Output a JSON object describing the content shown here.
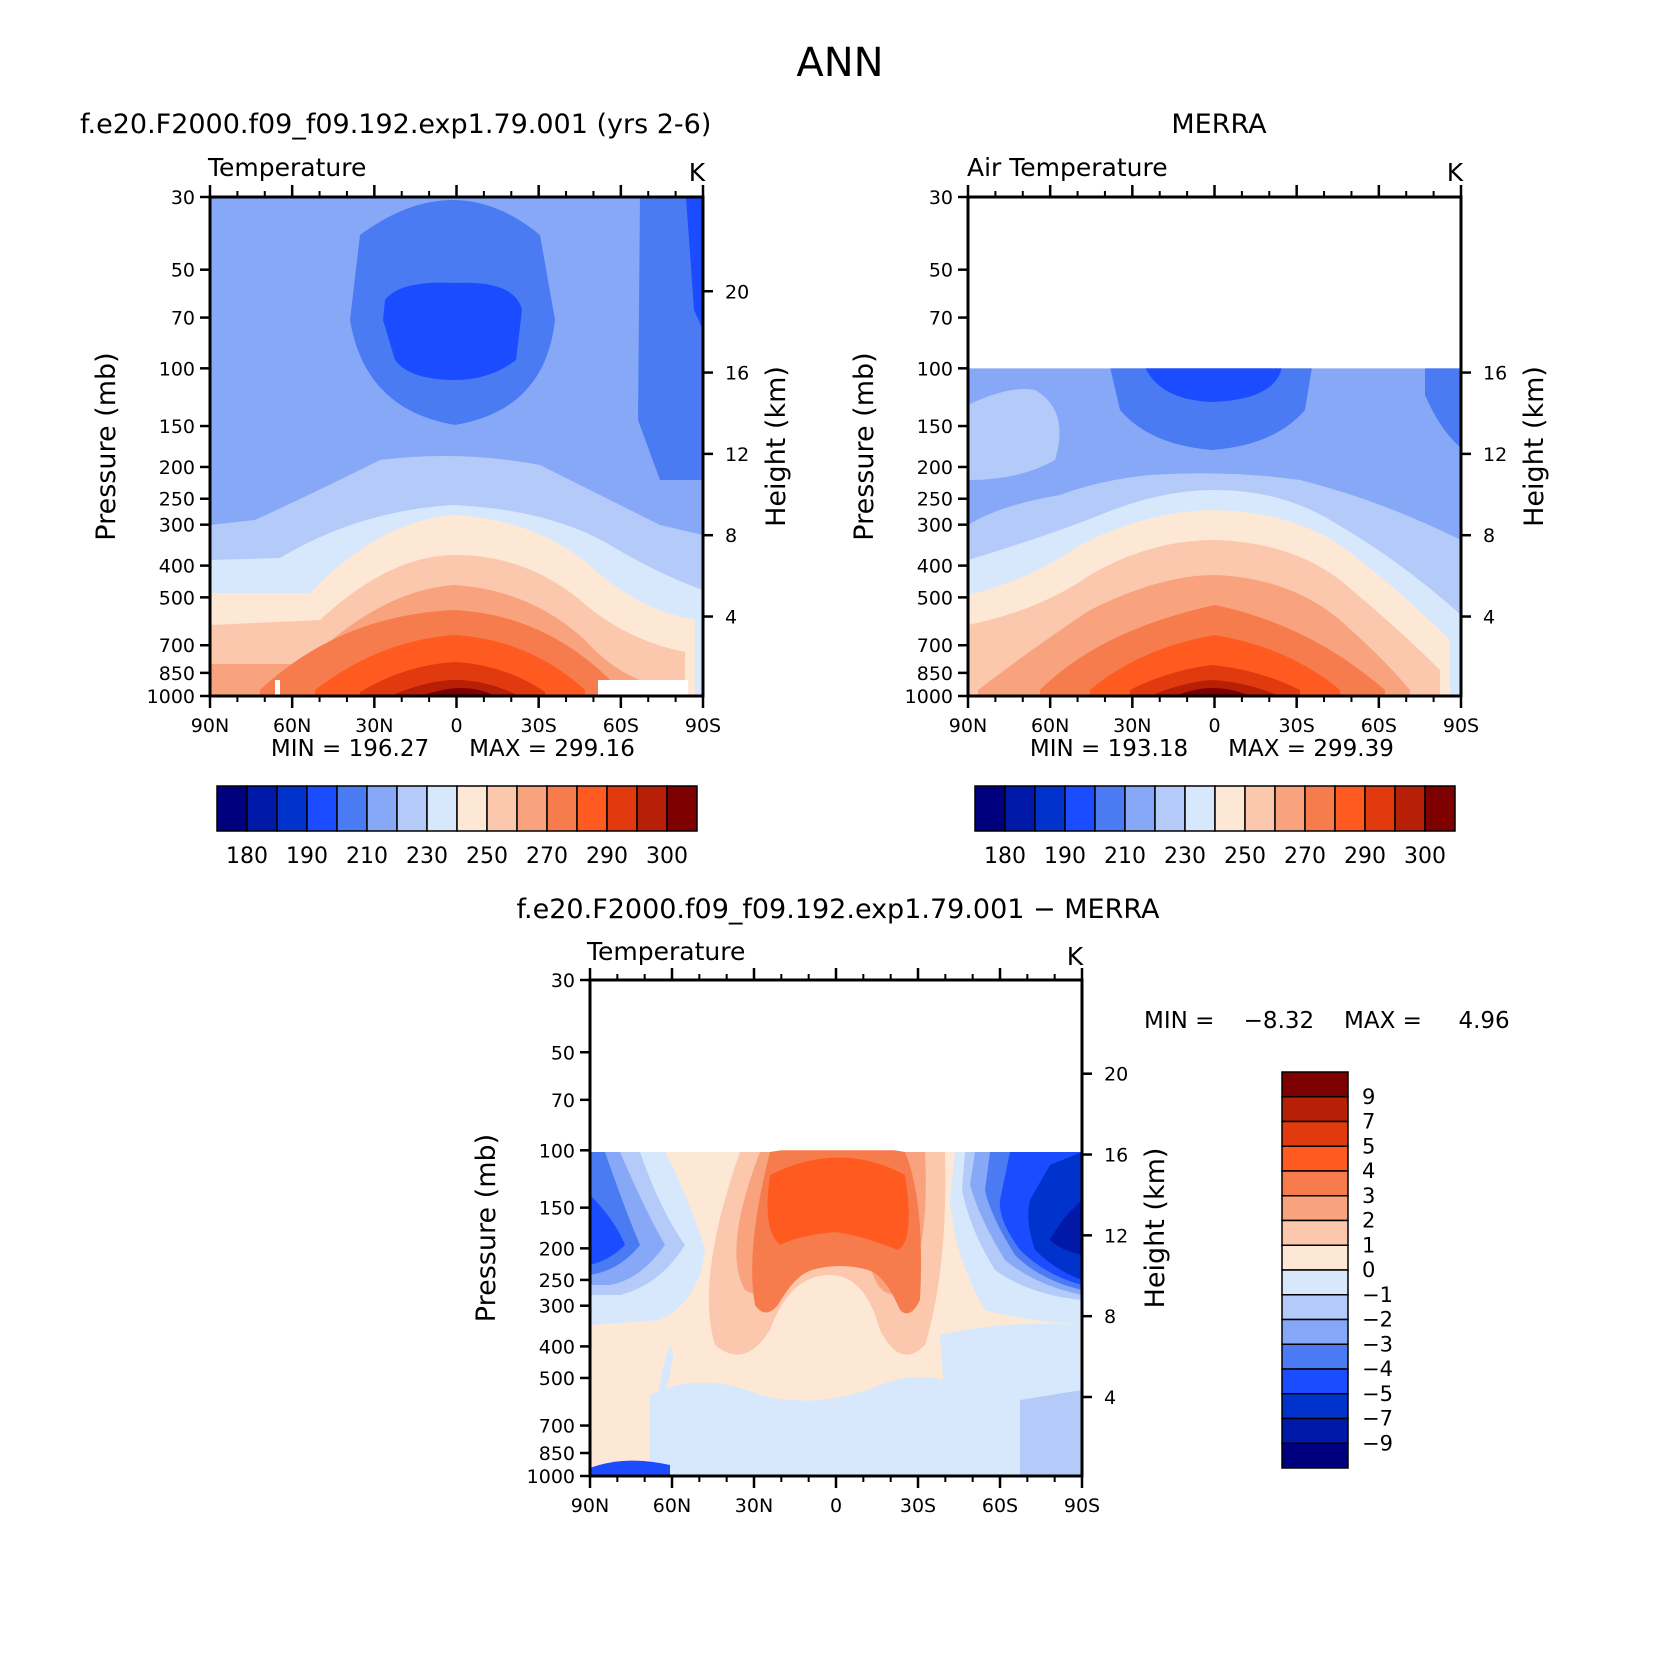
{
  "figure_title": "ANN",
  "colors": {
    "abs_levels": [
      "#00007f",
      "#0019a8",
      "#0033cc",
      "#1b4cff",
      "#4a7bf2",
      "#86a8f7",
      "#b4cbfa",
      "#d7e8fc",
      "#fde8d6",
      "#fbc8ad",
      "#f8a37e",
      "#f67c4d",
      "#ff5a1f",
      "#e03a0e",
      "#b81f07",
      "#7f0000"
    ],
    "diff_levels": [
      "#00007f",
      "#0019a8",
      "#0033cc",
      "#1b4cff",
      "#4a7bf2",
      "#86a8f7",
      "#b4cbfa",
      "#d7e8fc",
      "#fde8d6",
      "#fbc8ad",
      "#f8a37e",
      "#f67c4d",
      "#ff5a1f",
      "#e03a0e",
      "#b81f07",
      "#7f0000"
    ]
  },
  "chart_data": [
    {
      "type": "heatmap",
      "panel_title": "f.e20.F2000.f09_f09.192.exp1.79.001 (yrs 2-6)",
      "variable": "Temperature",
      "units": "K",
      "xlabel": "",
      "ylabel": "Pressure (mb)",
      "ylabel_right": "Height (km)",
      "x_ticks": [
        "90N",
        "60N",
        "30N",
        "0",
        "30S",
        "60S",
        "90S"
      ],
      "x_range": [
        90,
        -90
      ],
      "y_ticks": [
        30,
        50,
        70,
        100,
        150,
        200,
        250,
        300,
        400,
        500,
        700,
        850,
        1000
      ],
      "y_range": [
        30,
        1000
      ],
      "y_scale": "log",
      "height_ticks": [
        20,
        16,
        12,
        8,
        4
      ],
      "data_top_mb": 30,
      "min_label": "MIN = 196.27",
      "max_label": "MAX = 299.16",
      "min": 196.27,
      "max": 299.16,
      "colorbar_labels": [
        "180",
        "190",
        "210",
        "230",
        "250",
        "270",
        "290",
        "300"
      ]
    },
    {
      "type": "heatmap",
      "panel_title": "MERRA",
      "variable": "Air Temperature",
      "units": "K",
      "xlabel": "",
      "ylabel": "Pressure (mb)",
      "ylabel_right": "Height (km)",
      "x_ticks": [
        "90N",
        "60N",
        "30N",
        "0",
        "30S",
        "60S",
        "90S"
      ],
      "x_range": [
        90,
        -90
      ],
      "y_ticks": [
        30,
        50,
        70,
        100,
        150,
        200,
        250,
        300,
        400,
        500,
        700,
        850,
        1000
      ],
      "y_range": [
        30,
        1000
      ],
      "y_scale": "log",
      "height_ticks": [
        16,
        12,
        8,
        4
      ],
      "data_top_mb": 100,
      "min_label": "MIN = 193.18",
      "max_label": "MAX = 299.39",
      "min": 193.18,
      "max": 299.39,
      "colorbar_labels": [
        "180",
        "190",
        "210",
        "230",
        "250",
        "270",
        "290",
        "300"
      ]
    },
    {
      "type": "heatmap",
      "panel_title": "f.e20.F2000.f09_f09.192.exp1.79.001 − MERRA",
      "variable": "Temperature",
      "units": "K",
      "xlabel": "",
      "ylabel": "Pressure (mb)",
      "ylabel_right": "Height (km)",
      "x_ticks": [
        "90N",
        "60N",
        "30N",
        "0",
        "30S",
        "60S",
        "90S"
      ],
      "x_range": [
        90,
        -90
      ],
      "y_ticks": [
        30,
        50,
        70,
        100,
        150,
        200,
        250,
        300,
        400,
        500,
        700,
        850,
        1000
      ],
      "y_range": [
        30,
        1000
      ],
      "y_scale": "log",
      "height_ticks": [
        20,
        16,
        12,
        8,
        4
      ],
      "data_top_mb": 100,
      "min_label": "MIN =    −8.32",
      "max_label": "MAX =     4.96",
      "min": -8.32,
      "max": 4.96,
      "colorbar_labels": [
        "9",
        "7",
        "5",
        "4",
        "3",
        "2",
        "1",
        "0",
        "−1",
        "−2",
        "−3",
        "−4",
        "−5",
        "−7",
        "−9"
      ]
    }
  ]
}
